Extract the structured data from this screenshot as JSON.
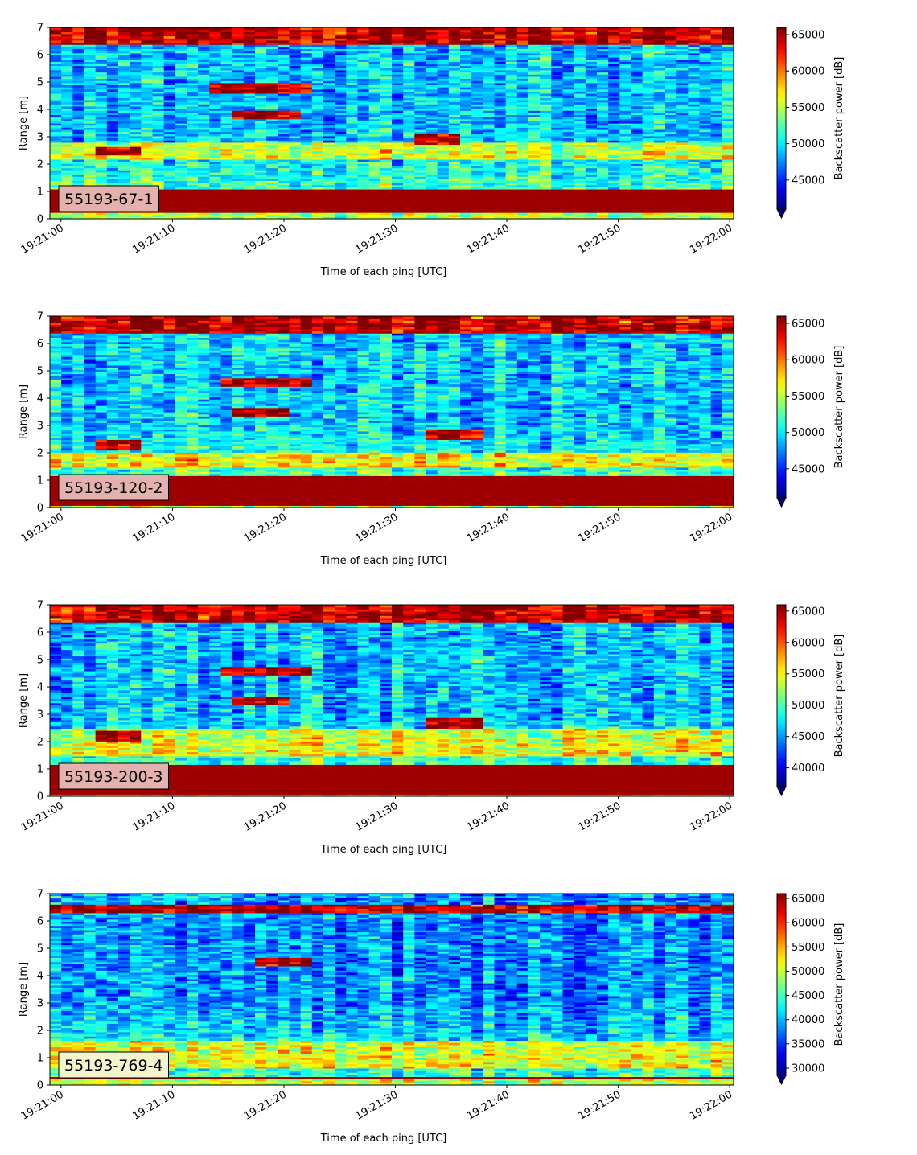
{
  "figure": {
    "xlabel": "Time of each ping [UTC]",
    "ylabel": "Range [m]",
    "colorbar_label": "Backscatter power [dB]",
    "x_ticks": [
      "19:21:00",
      "19:21:10",
      "19:21:20",
      "19:21:30",
      "19:21:40",
      "19:21:50",
      "19:22:00"
    ],
    "y_ticks": [
      "0",
      "1",
      "2",
      "3",
      "4",
      "5",
      "6",
      "7"
    ],
    "colormap": "jet"
  },
  "chart_data": [
    {
      "type": "heatmap",
      "label": "55193-67-1",
      "label_box_color": "#e3b2ae",
      "xlabel": "Time of each ping [UTC]",
      "ylabel": "Range [m]",
      "xlim": [
        "19:21:00",
        "19:22:00"
      ],
      "ylim": [
        0,
        7
      ],
      "colorbar": {
        "label": "Backscatter power [dB]",
        "range": [
          41000,
          66000
        ],
        "ticks": [
          "45000",
          "50000",
          "55000",
          "60000",
          "65000"
        ],
        "extend": "min"
      },
      "features": {
        "strong_bottom_band_m": [
          0.2,
          1.1
        ],
        "surface_band_m": [
          6.4,
          7.0
        ],
        "bright_band_m": [
          2.2,
          2.8
        ],
        "fish_traces": [
          {
            "t_start_s": 3.5,
            "t_end_s": 7.5,
            "range_m": 2.5
          },
          {
            "t_start_s": 13.0,
            "t_end_s": 23.0,
            "range_m": 4.8
          },
          {
            "t_start_s": 15.0,
            "t_end_s": 22.0,
            "range_m": 3.8
          },
          {
            "t_start_s": 31.5,
            "t_end_s": 35.5,
            "range_m": 2.9
          }
        ]
      }
    },
    {
      "type": "heatmap",
      "label": "55193-120-2",
      "label_box_color": "#e3b2ae",
      "xlabel": "Time of each ping [UTC]",
      "ylabel": "Range [m]",
      "xlim": [
        "19:21:00",
        "19:22:00"
      ],
      "ylim": [
        0,
        7
      ],
      "colorbar": {
        "label": "Backscatter power [dB]",
        "range": [
          41000,
          66000
        ],
        "ticks": [
          "45000",
          "50000",
          "55000",
          "60000",
          "65000"
        ],
        "extend": "min"
      },
      "features": {
        "strong_bottom_band_m": [
          0.1,
          1.2
        ],
        "surface_band_m": [
          6.4,
          6.8
        ],
        "bright_band_m": [
          1.5,
          2.0
        ],
        "fish_traces": [
          {
            "t_start_s": 3.5,
            "t_end_s": 7.5,
            "range_m": 2.3
          },
          {
            "t_start_s": 14.5,
            "t_end_s": 23.0,
            "range_m": 4.6
          },
          {
            "t_start_s": 15.0,
            "t_end_s": 20.5,
            "range_m": 3.5
          },
          {
            "t_start_s": 32.5,
            "t_end_s": 37.5,
            "range_m": 2.7
          }
        ]
      }
    },
    {
      "type": "heatmap",
      "label": "55193-200-3",
      "label_box_color": "#e3b2ae",
      "xlabel": "Time of each ping [UTC]",
      "ylabel": "Range [m]",
      "xlim": [
        "19:21:00",
        "19:22:00"
      ],
      "ylim": [
        0,
        7
      ],
      "colorbar": {
        "label": "Backscatter power [dB]",
        "range": [
          37000,
          66000
        ],
        "ticks": [
          "40000",
          "45000",
          "50000",
          "55000",
          "60000",
          "65000"
        ],
        "extend": "min"
      },
      "features": {
        "strong_bottom_band_m": [
          0.1,
          1.2
        ],
        "surface_band_m": [
          6.4,
          7.0
        ],
        "bright_band_m": [
          1.5,
          2.5
        ],
        "fish_traces": [
          {
            "t_start_s": 3.5,
            "t_end_s": 7.5,
            "range_m": 2.2
          },
          {
            "t_start_s": 14.5,
            "t_end_s": 23.0,
            "range_m": 4.6
          },
          {
            "t_start_s": 15.0,
            "t_end_s": 20.5,
            "range_m": 3.5
          },
          {
            "t_start_s": 32.5,
            "t_end_s": 37.5,
            "range_m": 2.7
          }
        ]
      }
    },
    {
      "type": "heatmap",
      "label": "55193-769-4",
      "label_box_color": "#f2f5cc",
      "xlabel": "Time of each ping [UTC]",
      "ylabel": "Range [m]",
      "xlim": [
        "19:21:00",
        "19:22:00"
      ],
      "ylim": [
        0,
        7
      ],
      "colorbar": {
        "label": "Backscatter power [dB]",
        "range": [
          28500,
          66000
        ],
        "ticks": [
          "30000",
          "35000",
          "40000",
          "45000",
          "50000",
          "55000",
          "60000",
          "65000"
        ],
        "extend": "min"
      },
      "features": {
        "strong_bottom_band_m": [
          0.2,
          0.35
        ],
        "surface_band_m": [
          6.3,
          6.6
        ],
        "bright_band_m": [
          0.6,
          1.6
        ],
        "fish_traces": [
          {
            "t_start_s": 17.0,
            "t_end_s": 23.0,
            "range_m": 4.5
          }
        ]
      }
    }
  ]
}
